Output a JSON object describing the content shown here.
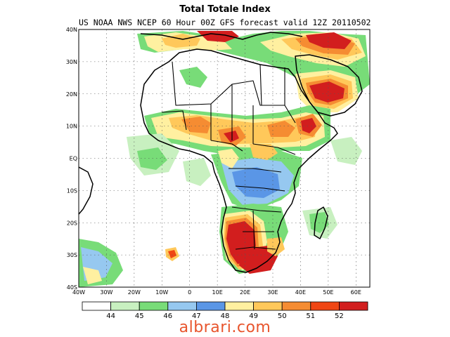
{
  "title": "Total Totale Index",
  "subtitle": "US NOAA NWS NCEP 60 Hour 00Z GFS forecast valid 12Z 20110502",
  "map": {
    "lat_labels": [
      "40N",
      "30N",
      "20N",
      "10N",
      "EQ",
      "10S",
      "20S",
      "30S",
      "40S"
    ],
    "lon_labels": [
      "40W",
      "30W",
      "20W",
      "10W",
      "0",
      "10E",
      "20E",
      "30E",
      "40E",
      "50E",
      "60E"
    ],
    "lat_range": [
      -40,
      40
    ],
    "lon_range": [
      -40,
      65
    ],
    "grid": "dotted"
  },
  "colorbar": {
    "labels": [
      "44",
      "45",
      "46",
      "47",
      "48",
      "49",
      "50",
      "51",
      "52"
    ],
    "colors": [
      "#ffffff",
      "#c8f0c0",
      "#78dc78",
      "#96c8f0",
      "#5a96e6",
      "#fff0a0",
      "#ffc85a",
      "#f58c32",
      "#f04614",
      "#d21e1e"
    ]
  },
  "watermark": "albrari.com"
}
